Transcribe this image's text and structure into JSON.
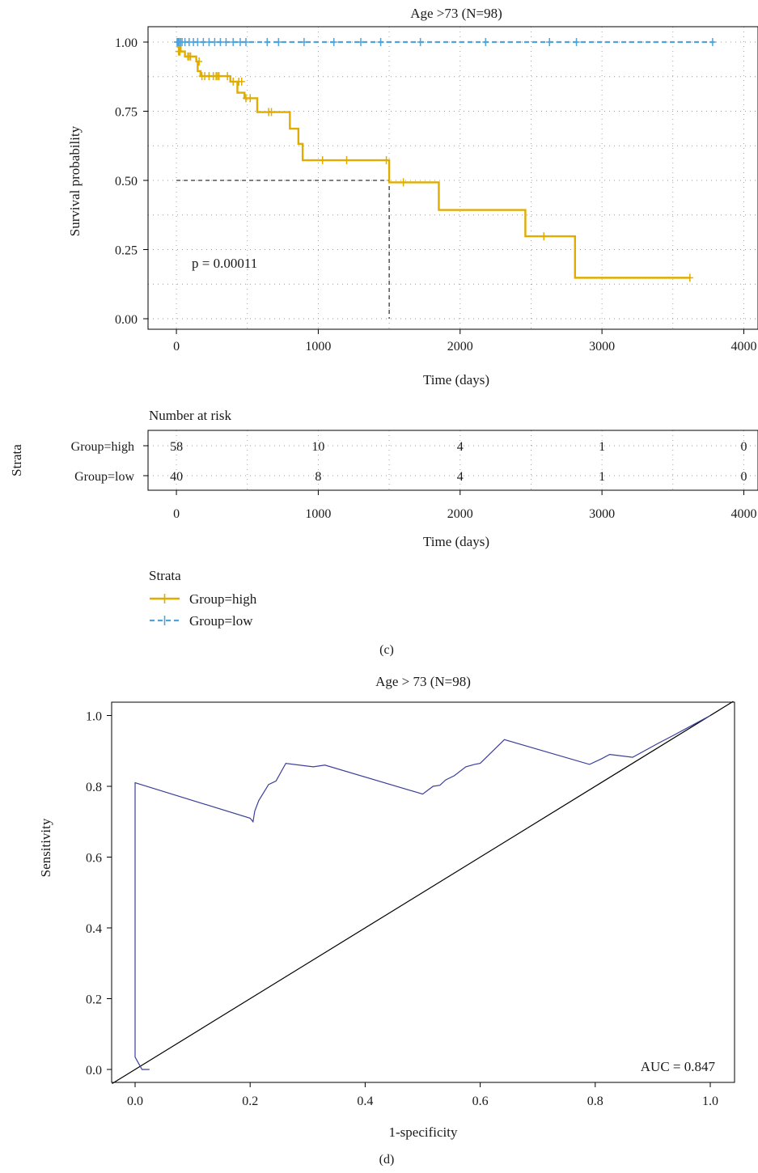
{
  "colors": {
    "high": "#E0AC00",
    "low": "#4FA3D9",
    "roc": "#3A3F9A",
    "grid": "#9a9a9a",
    "axis": "#000000"
  },
  "chart_data": [
    {
      "type": "line",
      "subtype": "kaplan-meier",
      "title": "Age >73 (N=98)",
      "xlabel": "Time (days)",
      "ylabel": "Survival probability",
      "xlim": [
        -200,
        4100
      ],
      "ylim": [
        0,
        1.0
      ],
      "xticks": [
        0,
        1000,
        2000,
        3000,
        4000
      ],
      "yticks": [
        0,
        0.25,
        0.5,
        0.75,
        1.0
      ],
      "ytick_labels": [
        "0.00",
        "0.25",
        "0.50",
        "0.75",
        "1.00"
      ],
      "grid": true,
      "pvalue_label": "p = 0.00011",
      "median_survival": {
        "x": 1500,
        "y": 0.5
      },
      "series": [
        {
          "name": "Group=high",
          "steps": [
            [
              0,
              1.0
            ],
            [
              10,
              0.983
            ],
            [
              30,
              0.966
            ],
            [
              60,
              0.948
            ],
            [
              140,
              0.93
            ],
            [
              150,
              0.895
            ],
            [
              170,
              0.877
            ],
            [
              380,
              0.857
            ],
            [
              430,
              0.817
            ],
            [
              480,
              0.797
            ],
            [
              570,
              0.747
            ],
            [
              800,
              0.687
            ],
            [
              860,
              0.632
            ],
            [
              890,
              0.573
            ],
            [
              1500,
              0.493
            ],
            [
              1850,
              0.393
            ],
            [
              2460,
              0.298
            ],
            [
              2810,
              0.148
            ],
            [
              3620,
              0.148
            ]
          ],
          "censors": [
            [
              15,
              0.966
            ],
            [
              20,
              0.966
            ],
            [
              25,
              0.966
            ],
            [
              80,
              0.948
            ],
            [
              90,
              0.948
            ],
            [
              100,
              0.948
            ],
            [
              160,
              0.93
            ],
            [
              180,
              0.877
            ],
            [
              200,
              0.877
            ],
            [
              230,
              0.877
            ],
            [
              260,
              0.877
            ],
            [
              280,
              0.877
            ],
            [
              290,
              0.877
            ],
            [
              300,
              0.877
            ],
            [
              360,
              0.877
            ],
            [
              400,
              0.857
            ],
            [
              440,
              0.857
            ],
            [
              460,
              0.857
            ],
            [
              490,
              0.797
            ],
            [
              520,
              0.797
            ],
            [
              650,
              0.747
            ],
            [
              670,
              0.747
            ],
            [
              1030,
              0.573
            ],
            [
              1200,
              0.573
            ],
            [
              1480,
              0.573
            ],
            [
              1600,
              0.493
            ],
            [
              2590,
              0.298
            ],
            [
              3620,
              0.148
            ]
          ]
        },
        {
          "name": "Group=low",
          "steps": [
            [
              0,
              1.0
            ],
            [
              3790,
              1.0
            ]
          ],
          "censors": [
            [
              5,
              1.0
            ],
            [
              10,
              1.0
            ],
            [
              15,
              1.0
            ],
            [
              20,
              1.0
            ],
            [
              30,
              1.0
            ],
            [
              40,
              1.0
            ],
            [
              60,
              1.0
            ],
            [
              90,
              1.0
            ],
            [
              120,
              1.0
            ],
            [
              150,
              1.0
            ],
            [
              190,
              1.0
            ],
            [
              230,
              1.0
            ],
            [
              270,
              1.0
            ],
            [
              310,
              1.0
            ],
            [
              350,
              1.0
            ],
            [
              400,
              1.0
            ],
            [
              450,
              1.0
            ],
            [
              490,
              1.0
            ],
            [
              640,
              1.0
            ],
            [
              720,
              1.0
            ],
            [
              900,
              1.0
            ],
            [
              1110,
              1.0
            ],
            [
              1300,
              1.0
            ],
            [
              1440,
              1.0
            ],
            [
              1720,
              1.0
            ],
            [
              2180,
              1.0
            ],
            [
              2630,
              1.0
            ],
            [
              2820,
              1.0
            ],
            [
              3780,
              1.0
            ]
          ]
        }
      ]
    },
    {
      "type": "table",
      "subtype": "number-at-risk",
      "title": "Number at risk",
      "xlabel": "Time (days)",
      "ylabel": "Strata",
      "xlim": [
        -200,
        4100
      ],
      "xticks": [
        0,
        1000,
        2000,
        3000,
        4000
      ],
      "timepoints": [
        0,
        1000,
        2000,
        3000,
        4000
      ],
      "rows": [
        {
          "name": "Group=high",
          "values": [
            58,
            10,
            4,
            1,
            0
          ]
        },
        {
          "name": "Group=low",
          "values": [
            40,
            8,
            4,
            1,
            0
          ]
        }
      ]
    },
    {
      "type": "line",
      "subtype": "roc",
      "title": "Age > 73 (N=98)",
      "xlabel": "1-specificity",
      "ylabel": "Sensitivity",
      "xlim": [
        -0.04,
        1.04
      ],
      "ylim": [
        -0.04,
        1.04
      ],
      "xticks": [
        0,
        0.2,
        0.4,
        0.6,
        0.8,
        1.0
      ],
      "xtick_labels": [
        "0.0",
        "0.2",
        "0.4",
        "0.6",
        "0.8",
        "1.0"
      ],
      "yticks": [
        0,
        0.2,
        0.4,
        0.6,
        0.8,
        1.0
      ],
      "ytick_labels": [
        "0.0",
        "0.2",
        "0.4",
        "0.6",
        "0.8",
        "1.0"
      ],
      "annotation": "AUC = 0.847",
      "series": [
        {
          "points": [
            [
              0.025,
              0.0
            ],
            [
              0.012,
              0.0
            ],
            [
              0.0,
              0.035
            ],
            [
              0.0,
              0.81
            ],
            [
              0.2,
              0.71
            ],
            [
              0.205,
              0.7
            ],
            [
              0.208,
              0.73
            ],
            [
              0.215,
              0.76
            ],
            [
              0.232,
              0.805
            ],
            [
              0.245,
              0.815
            ],
            [
              0.262,
              0.865
            ],
            [
              0.31,
              0.855
            ],
            [
              0.33,
              0.86
            ],
            [
              0.5,
              0.778
            ],
            [
              0.518,
              0.8
            ],
            [
              0.53,
              0.803
            ],
            [
              0.54,
              0.818
            ],
            [
              0.555,
              0.83
            ],
            [
              0.575,
              0.855
            ],
            [
              0.59,
              0.862
            ],
            [
              0.6,
              0.865
            ],
            [
              0.642,
              0.932
            ],
            [
              0.79,
              0.862
            ],
            [
              0.81,
              0.877
            ],
            [
              0.825,
              0.89
            ],
            [
              0.865,
              0.882
            ],
            [
              0.91,
              0.922
            ],
            [
              0.935,
              0.943
            ],
            [
              0.96,
              0.965
            ],
            [
              1.0,
              1.0
            ]
          ]
        },
        {
          "points": [
            [
              -0.04,
              -0.04
            ],
            [
              1.04,
              1.04
            ]
          ]
        }
      ]
    }
  ],
  "legend": {
    "title": "Strata",
    "items": [
      {
        "label": "Group=high",
        "color_key": "high"
      },
      {
        "label": "Group=low",
        "color_key": "low"
      }
    ]
  },
  "captions": {
    "c": "(c)",
    "d": "(d)"
  }
}
